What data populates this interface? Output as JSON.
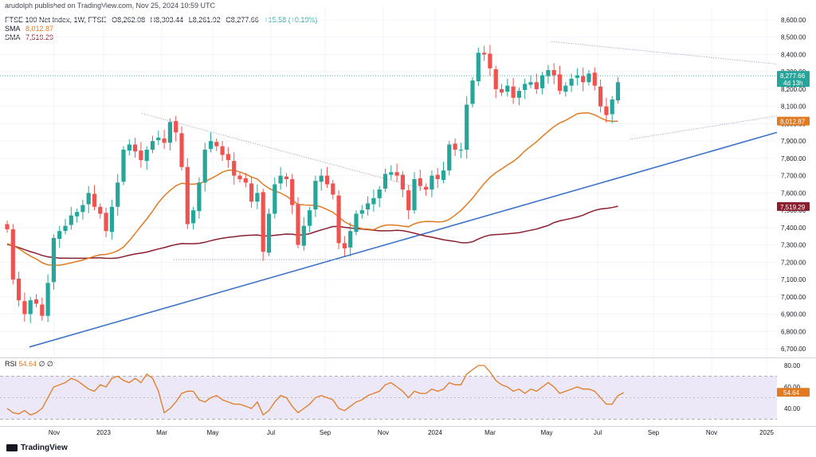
{
  "header": {
    "published": "arudolph published on TradingView.com, Nov 25, 2024 10:59 UTC",
    "symbol": "FTSE 100 Net Index, 1W, FTSE",
    "open": "O8,262.08",
    "high": "H8,303.44",
    "low": "L8,261.92",
    "close": "C8,277.66",
    "change": "+15.58 (+0.19%)",
    "sma1_label": "SMA",
    "sma1_value": "8,012.87",
    "sma2_label": "SMA",
    "sma2_value": "7,519.29"
  },
  "rsi_header": {
    "label": "RSI",
    "value": "54.64",
    "extra": "∅ ∅"
  },
  "footer": {
    "brand": "TradingView"
  },
  "colors": {
    "up": "#26a69a",
    "down": "#ef5350",
    "sma_fast": "#e07b22",
    "sma_slow": "#8b1e2e",
    "trend": "#3d73c9",
    "rsi": "#e07b22",
    "rsi_band": "#ede8f8"
  },
  "chart_data": [
    {
      "type": "candlestick",
      "title": "FTSE 100 Net Index, 1W, FTSE",
      "ylim": [
        6650,
        8650
      ],
      "y_ticks": [
        "8,600.00",
        "8,500.00",
        "8,400.00",
        "8,300.00",
        "8,200.00",
        "8,100.00",
        "8,000.00",
        "7,900.00",
        "7,800.00",
        "7,700.00",
        "7,600.00",
        "7,500.00",
        "7,400.00",
        "7,300.00",
        "7,200.00",
        "7,100.00",
        "7,000.00",
        "6,900.00",
        "6,800.00",
        "6,700.00"
      ],
      "x_ticks": [
        "Nov",
        "2023",
        "Mar",
        "May",
        "Jul",
        "Sep",
        "Nov",
        "2024",
        "Mar",
        "May",
        "Jul",
        "Sep",
        "Nov",
        "2025"
      ],
      "closes": [
        7390,
        7100,
        6980,
        6900,
        6980,
        6960,
        6890,
        7080,
        7340,
        7380,
        7410,
        7470,
        7490,
        7530,
        7600,
        7520,
        7480,
        7380,
        7520,
        7660,
        7850,
        7880,
        7840,
        7790,
        7850,
        7900,
        7920,
        7890,
        8010,
        7950,
        7750,
        7420,
        7500,
        7660,
        7850,
        7900,
        7870,
        7820,
        7790,
        7700,
        7680,
        7660,
        7550,
        7600,
        7260,
        7480,
        7650,
        7700,
        7680,
        7530,
        7300,
        7410,
        7500,
        7670,
        7700,
        7650,
        7590,
        7310,
        7280,
        7380,
        7480,
        7500,
        7540,
        7570,
        7620,
        7710,
        7720,
        7700,
        7620,
        7500,
        7680,
        7640,
        7620,
        7700,
        7680,
        7730,
        7880,
        7850,
        7850,
        8110,
        8250,
        8410,
        8400,
        8320,
        8200,
        8180,
        8220,
        8150,
        8190,
        8230,
        8240,
        8200,
        8280,
        8310,
        8280,
        8190,
        8220,
        8260,
        8280,
        8240,
        8290,
        8220,
        8100,
        8050,
        8140,
        8240
      ],
      "last_close": 8277.66,
      "candle_count": 107,
      "sma_fast_last": 8012.87,
      "sma_slow_last": 7519.29,
      "current_price_label": "8,277.66",
      "countdown_label": "4d 13h",
      "sma_fast_label": "8,012.87",
      "sma_slow_label": "7,519.29"
    },
    {
      "type": "line",
      "title": "RSI",
      "ylim": [
        32,
        84
      ],
      "y_ticks": [
        "80.00",
        "60.00",
        "40.00"
      ],
      "bands": [
        30,
        70
      ],
      "midline": 50,
      "values": [
        40,
        36,
        35,
        38,
        34,
        36,
        40,
        50,
        60,
        62,
        64,
        68,
        66,
        62,
        58,
        56,
        62,
        60,
        68,
        70,
        66,
        64,
        68,
        64,
        72,
        68,
        56,
        36,
        40,
        46,
        54,
        56,
        56,
        48,
        46,
        50,
        52,
        48,
        46,
        44,
        44,
        42,
        40,
        46,
        34,
        38,
        46,
        52,
        50,
        42,
        36,
        40,
        44,
        50,
        52,
        50,
        48,
        40,
        38,
        42,
        46,
        48,
        52,
        54,
        56,
        62,
        64,
        60,
        56,
        50,
        56,
        54,
        54,
        58,
        56,
        58,
        64,
        62,
        62,
        72,
        76,
        80,
        80,
        74,
        66,
        62,
        60,
        56,
        58,
        54,
        58,
        56,
        60,
        64,
        60,
        54,
        56,
        58,
        60,
        58,
        58,
        56,
        50,
        44,
        44,
        52,
        54.64
      ],
      "current_label": "54.64"
    }
  ]
}
